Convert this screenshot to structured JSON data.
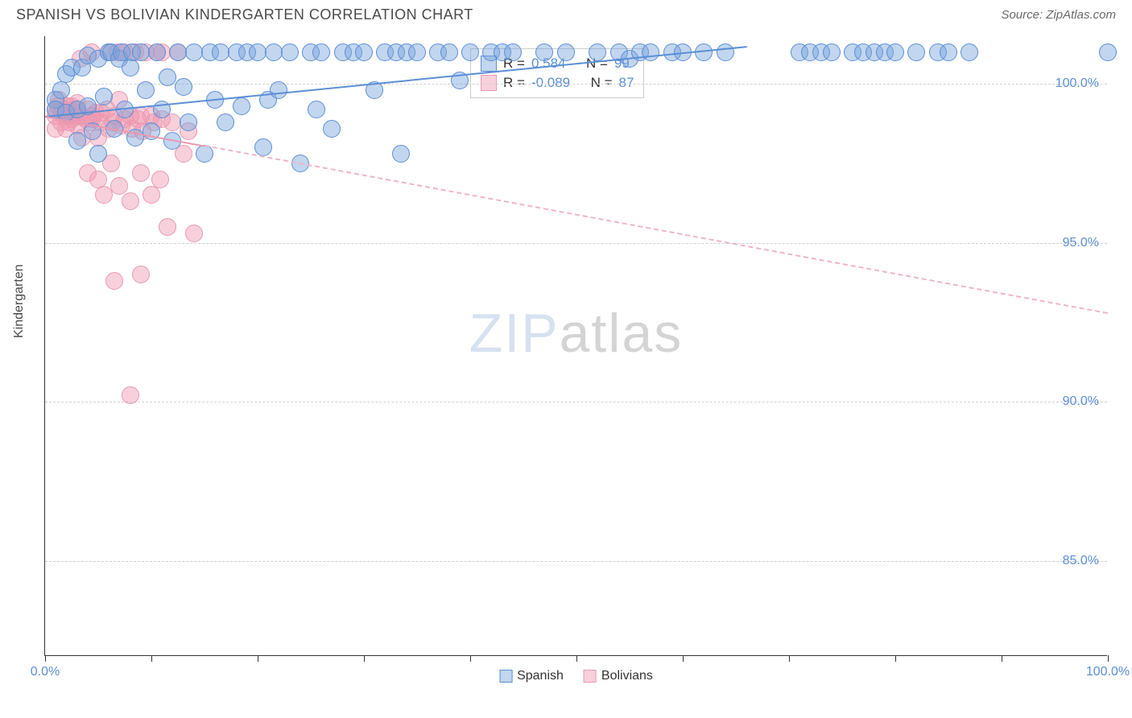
{
  "title": "SPANISH VS BOLIVIAN KINDERGARTEN CORRELATION CHART",
  "source": "Source: ZipAtlas.com",
  "ylabel": "Kindergarten",
  "watermark_a": "ZIP",
  "watermark_b": "atlas",
  "chart": {
    "type": "scatter",
    "background_color": "#ffffff",
    "grid_color": "#d0d0d0",
    "xlim": [
      0,
      100
    ],
    "ylim": [
      82,
      101.5
    ],
    "yticks": [
      85,
      90,
      95,
      100
    ],
    "ytick_labels": [
      "85.0%",
      "90.0%",
      "95.0%",
      "100.0%"
    ],
    "xticks": [
      0,
      10,
      20,
      30,
      40,
      50,
      60,
      70,
      80,
      90,
      100
    ],
    "xtick_labels": {
      "0": "0.0%",
      "100": "100.0%"
    },
    "marker_radius": 11,
    "marker_border": 1,
    "series": [
      {
        "name": "Spanish",
        "fill": "rgba(120,165,220,0.45)",
        "stroke": "#5b8fd6",
        "r_value": "0.584",
        "n_value": "99",
        "trend": {
          "x1": 0,
          "y1": 99.0,
          "x2": 66,
          "y2": 101.2,
          "solid_to_x": 66,
          "dash_color": "#5b8fd6",
          "width": 2
        },
        "points": [
          [
            1,
            99.5
          ],
          [
            1,
            99.2
          ],
          [
            1.5,
            99.8
          ],
          [
            2,
            100.3
          ],
          [
            2,
            99.1
          ],
          [
            2.5,
            100.5
          ],
          [
            3,
            99.2
          ],
          [
            3,
            98.2
          ],
          [
            3.5,
            100.5
          ],
          [
            4,
            99.3
          ],
          [
            4,
            100.9
          ],
          [
            4.5,
            98.5
          ],
          [
            5,
            100.8
          ],
          [
            5,
            97.8
          ],
          [
            5.5,
            99.6
          ],
          [
            6,
            101.0
          ],
          [
            6.2,
            101.0
          ],
          [
            6.5,
            98.6
          ],
          [
            7,
            100.8
          ],
          [
            7.2,
            101.0
          ],
          [
            7.5,
            99.2
          ],
          [
            8,
            100.5
          ],
          [
            8.2,
            101.0
          ],
          [
            8.5,
            98.3
          ],
          [
            9,
            101.0
          ],
          [
            9.5,
            99.8
          ],
          [
            10,
            98.5
          ],
          [
            10.5,
            101.0
          ],
          [
            11,
            99.2
          ],
          [
            11.5,
            100.2
          ],
          [
            12,
            98.2
          ],
          [
            12.5,
            101.0
          ],
          [
            13,
            99.9
          ],
          [
            13.5,
            98.8
          ],
          [
            14,
            101.0
          ],
          [
            15,
            97.8
          ],
          [
            15.5,
            101.0
          ],
          [
            16,
            99.5
          ],
          [
            16.5,
            101.0
          ],
          [
            17,
            98.8
          ],
          [
            18,
            101.0
          ],
          [
            18.5,
            99.3
          ],
          [
            19,
            101.0
          ],
          [
            20,
            101.0
          ],
          [
            20.5,
            98.0
          ],
          [
            21,
            99.5
          ],
          [
            21.5,
            101.0
          ],
          [
            22,
            99.8
          ],
          [
            23,
            101.0
          ],
          [
            24,
            97.5
          ],
          [
            25,
            101.0
          ],
          [
            25.5,
            99.2
          ],
          [
            26,
            101.0
          ],
          [
            27,
            98.6
          ],
          [
            28,
            101.0
          ],
          [
            29,
            101.0
          ],
          [
            30,
            101.0
          ],
          [
            31,
            99.8
          ],
          [
            32,
            101.0
          ],
          [
            33,
            101.0
          ],
          [
            33.5,
            97.8
          ],
          [
            34,
            101.0
          ],
          [
            35,
            101.0
          ],
          [
            37,
            101.0
          ],
          [
            38,
            101.0
          ],
          [
            39,
            100.1
          ],
          [
            40,
            101.0
          ],
          [
            42,
            101.0
          ],
          [
            43,
            101.0
          ],
          [
            44,
            101.0
          ],
          [
            47,
            101.0
          ],
          [
            49,
            101.0
          ],
          [
            52,
            101.0
          ],
          [
            54,
            101.0
          ],
          [
            55,
            100.8
          ],
          [
            56,
            101.0
          ],
          [
            57,
            101.0
          ],
          [
            59,
            101.0
          ],
          [
            60,
            101.0
          ],
          [
            62,
            101.0
          ],
          [
            64,
            101.0
          ],
          [
            71,
            101.0
          ],
          [
            72,
            101.0
          ],
          [
            73,
            101.0
          ],
          [
            74,
            101.0
          ],
          [
            76,
            101.0
          ],
          [
            77,
            101.0
          ],
          [
            78,
            101.0
          ],
          [
            79,
            101.0
          ],
          [
            80,
            101.0
          ],
          [
            82,
            101.0
          ],
          [
            84,
            101.0
          ],
          [
            85,
            101.0
          ],
          [
            87,
            101.0
          ],
          [
            100,
            101.0
          ]
        ]
      },
      {
        "name": "Bolivians",
        "fill": "rgba(240,150,175,0.45)",
        "stroke": "#e89ab2",
        "r_value": "-0.089",
        "n_value": "87",
        "trend": {
          "x1": 0,
          "y1": 99.0,
          "x2": 100,
          "y2": 92.8,
          "solid_to_x": 15,
          "dash_color": "#f0b5c5",
          "width": 2
        },
        "points": [
          [
            1,
            99.2
          ],
          [
            1,
            99.0
          ],
          [
            1,
            98.6
          ],
          [
            1.2,
            99.3
          ],
          [
            1.3,
            99.5
          ],
          [
            1.5,
            98.8
          ],
          [
            1.5,
            99.1
          ],
          [
            1.7,
            99.2
          ],
          [
            1.8,
            99.0
          ],
          [
            2,
            98.6
          ],
          [
            2,
            99.2
          ],
          [
            2,
            99.0
          ],
          [
            2.1,
            99.3
          ],
          [
            2.2,
            98.8
          ],
          [
            2.3,
            99.0
          ],
          [
            2.5,
            99.3
          ],
          [
            2.5,
            98.9
          ],
          [
            2.7,
            99.0
          ],
          [
            2.8,
            99.2
          ],
          [
            3,
            99.1
          ],
          [
            3,
            98.7
          ],
          [
            3,
            99.4
          ],
          [
            3.2,
            99.0
          ],
          [
            3.3,
            100.8
          ],
          [
            3.5,
            98.3
          ],
          [
            3.5,
            99.0
          ],
          [
            3.8,
            98.9
          ],
          [
            4,
            99.2
          ],
          [
            4,
            97.2
          ],
          [
            4.2,
            98.8
          ],
          [
            4.4,
            101.0
          ],
          [
            4.5,
            98.9
          ],
          [
            4.5,
            99.0
          ],
          [
            4.8,
            99.1
          ],
          [
            5,
            98.3
          ],
          [
            5,
            97.0
          ],
          [
            5.2,
            98.8
          ],
          [
            5.3,
            99.1
          ],
          [
            5.5,
            96.5
          ],
          [
            5.8,
            99.2
          ],
          [
            6,
            98.6
          ],
          [
            6,
            101.0
          ],
          [
            6.2,
            97.5
          ],
          [
            6.4,
            98.8
          ],
          [
            6.5,
            99.0
          ],
          [
            6.8,
            101.0
          ],
          [
            7,
            99.5
          ],
          [
            7,
            96.8
          ],
          [
            7.2,
            98.7
          ],
          [
            7.5,
            98.9
          ],
          [
            7.5,
            101.0
          ],
          [
            8,
            96.3
          ],
          [
            8,
            99.0
          ],
          [
            8.2,
            98.6
          ],
          [
            8.5,
            101.0
          ],
          [
            8.7,
            98.9
          ],
          [
            9,
            97.2
          ],
          [
            9,
            99.0
          ],
          [
            9,
            94.0
          ],
          [
            9.2,
            98.5
          ],
          [
            9.5,
            101.0
          ],
          [
            10,
            99.0
          ],
          [
            10,
            96.5
          ],
          [
            10.2,
            98.8
          ],
          [
            10.5,
            101.0
          ],
          [
            10.8,
            97.0
          ],
          [
            11,
            98.9
          ],
          [
            11,
            101.0
          ],
          [
            11.5,
            95.5
          ],
          [
            12,
            98.8
          ],
          [
            12.5,
            101.0
          ],
          [
            13,
            97.8
          ],
          [
            13.5,
            98.5
          ],
          [
            14,
            95.3
          ],
          [
            6.5,
            93.8
          ],
          [
            8,
            90.2
          ]
        ]
      }
    ]
  },
  "legend": {
    "series1_label": "Spanish",
    "series2_label": "Bolivians",
    "r_label": "R =",
    "n_label": "N ="
  }
}
